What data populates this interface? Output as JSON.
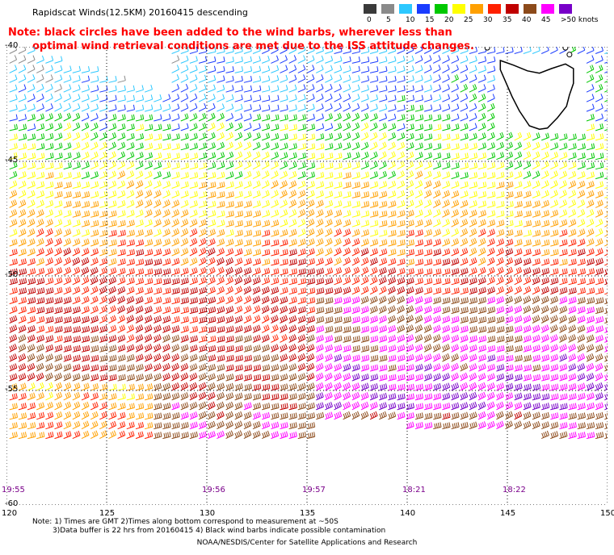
{
  "title": "Rapidscat Winds(12.5KM) 20160415 descending",
  "note": {
    "line1": "Note: black circles have been added to the wind barbs, wherever less than",
    "line2": "optimal wind retrieval conditions are met due to the ISS attitude changes."
  },
  "legend": {
    "unit": "knots",
    "labels": [
      "0",
      "5",
      "10",
      "15",
      "20",
      "25",
      "30",
      "35",
      "40",
      "45",
      ">50 knots"
    ],
    "colors": [
      "#3a3a3a",
      "#8a8a8a",
      "#2cc8ff",
      "#1a3cff",
      "#00c800",
      "#ffff00",
      "#ffa000",
      "#ff2000",
      "#c00000",
      "#8c4a1a",
      "#ff00ff",
      "#7800c8"
    ]
  },
  "map": {
    "lat_labels": [
      "-40",
      "-45",
      "-50",
      "-55",
      "-60"
    ],
    "lon_labels": [
      "120",
      "125",
      "130",
      "135",
      "140",
      "145",
      "150"
    ],
    "lat_range": [
      -60,
      -40
    ],
    "lon_range": [
      120,
      150
    ],
    "time_labels": [
      "19:55",
      "19:56",
      "19:57",
      "18:21",
      "18:22"
    ],
    "time_label_lons": [
      120,
      130,
      135,
      140,
      145
    ],
    "colors": {
      "coast": "#000000",
      "grid": "#000000",
      "time": "#7a008a"
    }
  },
  "footnote": {
    "line1": "Note: 1) Times are GMT 2)Times along bottom correspond to measurement at ~50S",
    "line2": "3)Data buffer is 22 hrs from 20160415 4) Black wind barbs indicate possible contamination"
  },
  "credit": "NOAA/NESDIS/Center for Satellite Applications and Research"
}
